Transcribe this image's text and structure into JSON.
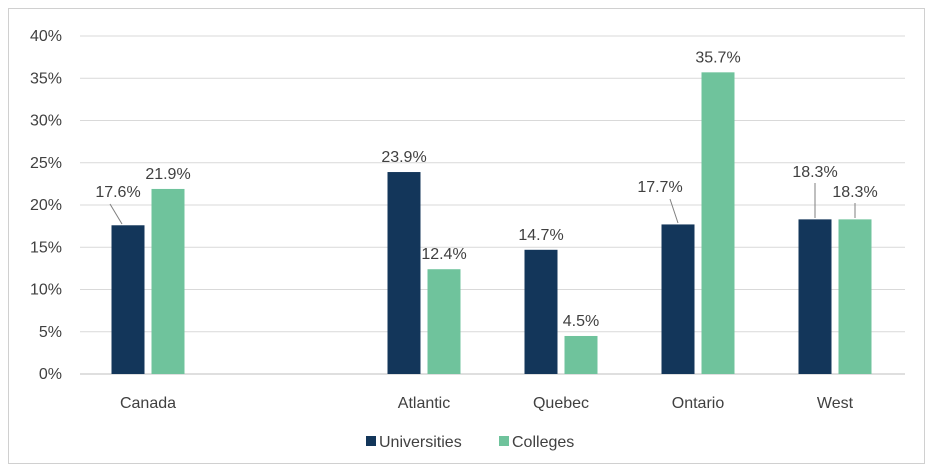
{
  "chart_data": {
    "type": "bar",
    "categories": [
      "Canada",
      "",
      "Atlantic",
      "Quebec",
      "Ontario",
      "West"
    ],
    "series": [
      {
        "name": "Universities",
        "color": "#13365a",
        "values": [
          17.6,
          null,
          23.9,
          14.7,
          17.7,
          18.3
        ],
        "labels": [
          "17.6%",
          "",
          "23.9%",
          "14.7%",
          "17.7%",
          "18.3%"
        ]
      },
      {
        "name": "Colleges",
        "color": "#6fc39c",
        "values": [
          21.9,
          null,
          12.4,
          4.5,
          35.7,
          18.3
        ],
        "labels": [
          "21.9%",
          "",
          "12.4%",
          "4.5%",
          "35.7%",
          "18.3%"
        ]
      }
    ],
    "ylim": [
      0,
      40
    ],
    "yticks": [
      0,
      5,
      10,
      15,
      20,
      25,
      30,
      35,
      40
    ],
    "ytick_labels": [
      "0%",
      "5%",
      "10%",
      "15%",
      "20%",
      "25%",
      "30%",
      "35%",
      "40%"
    ],
    "grid": true,
    "legend": "bottom-center",
    "title": "",
    "xlabel": "",
    "ylabel": ""
  }
}
